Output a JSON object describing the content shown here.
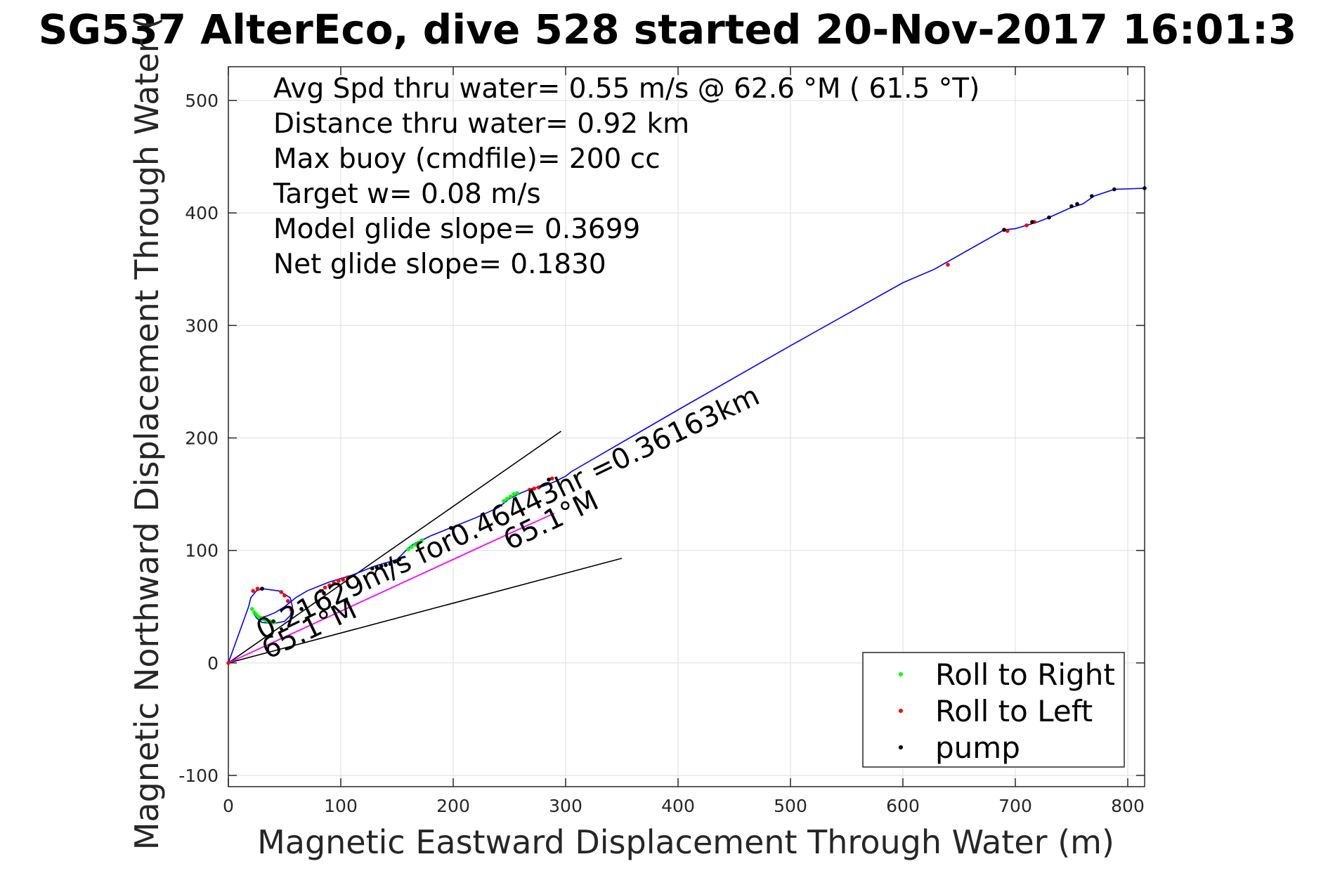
{
  "title": "SG537 AlterEco, dive 528 started 20-Nov-2017 16:01:3",
  "chart_data": {
    "type": "line",
    "title": "SG537 AlterEco, dive 528 started 20-Nov-2017 16:01:3",
    "xlabel": "Magnetic Eastward Displacement Through Water (m)",
    "ylabel": "Magnetic Northward Displacement Through Water (",
    "xlim": [
      0,
      815
    ],
    "ylim": [
      -110,
      530
    ],
    "xticks": [
      0,
      100,
      200,
      300,
      400,
      500,
      600,
      700,
      800
    ],
    "yticks": [
      -100,
      0,
      100,
      200,
      300,
      400,
      500
    ],
    "grid": true,
    "stats_text": [
      "Avg Spd thru water=  0.55 m/s @  62.6 °M ( 61.5 °T)",
      "Distance thru water=  0.92 km",
      "Max buoy (cmdfile)= 200 cc",
      "Target w= 0.08 m/s",
      "Model glide slope= 0.3699",
      "Net glide slope= 0.1830"
    ],
    "annotations": [
      {
        "text": "0.21629m/s for0.46443hr =0.36163km",
        "x": 30,
        "y": 20,
        "angle_deg": -25.5
      },
      {
        "text": "65.1°M",
        "x": 35,
        "y": 3,
        "angle_deg": -25.5
      },
      {
        "text": "65.1°M",
        "x": 250,
        "y": 100,
        "angle_deg": -25.5
      }
    ],
    "track": {
      "name": "track",
      "color": "#0000ff",
      "x": [
        0,
        18,
        20,
        25,
        30,
        45,
        55,
        57,
        55,
        50,
        40,
        30,
        25,
        22,
        28,
        35,
        42,
        50,
        60,
        70,
        80,
        90,
        100,
        110,
        115,
        120,
        130,
        140,
        150,
        153,
        160,
        165,
        170,
        180,
        200,
        220,
        240,
        250,
        260,
        270,
        280,
        290,
        300,
        305,
        400,
        500,
        600,
        628,
        690,
        700,
        710,
        720,
        730,
        750,
        760,
        770,
        788,
        815
      ],
      "y": [
        0,
        50,
        58,
        64,
        66,
        64,
        58,
        50,
        42,
        37,
        35,
        36,
        40,
        45,
        40,
        42,
        45,
        50,
        58,
        64,
        68,
        72,
        75,
        78,
        80,
        82,
        86,
        89,
        92,
        95,
        102,
        106,
        108,
        113,
        121,
        129,
        138,
        146,
        151,
        155,
        157,
        161,
        166,
        170,
        225,
        282,
        338,
        350,
        385,
        386,
        389,
        392,
        396,
        405,
        408,
        415,
        421,
        422
      ]
    },
    "model_line": {
      "name": "model",
      "color": "#ff00ff",
      "x": [
        0,
        50,
        100,
        150,
        200,
        250,
        290
      ],
      "y": [
        0,
        23,
        46,
        69,
        92,
        115,
        133
      ]
    },
    "bound_lines": [
      {
        "x": [
          0,
          296
        ],
        "y": [
          0,
          206
        ]
      },
      {
        "x": [
          0,
          350
        ],
        "y": [
          0,
          93
        ]
      }
    ],
    "roll_right": {
      "name": "Roll to Right",
      "color": "#00ff00",
      "x": [
        21,
        23,
        25,
        27,
        29,
        31,
        33,
        35,
        37,
        39,
        41,
        160,
        163,
        166,
        169,
        172,
        245,
        248,
        251,
        254,
        257
      ],
      "y": [
        48,
        45,
        43,
        41,
        40,
        39,
        38,
        37,
        37,
        36,
        36,
        101,
        103,
        105,
        107,
        109,
        144,
        146,
        148,
        150,
        151
      ]
    },
    "roll_left": {
      "name": "Roll to Left",
      "color": "#ff0000",
      "x": [
        0,
        22,
        26,
        30,
        47,
        50,
        53,
        56,
        82,
        86,
        90,
        94,
        98,
        102,
        106,
        268,
        272,
        276,
        288,
        640,
        693,
        710,
        717
      ],
      "y": [
        0,
        64,
        66,
        66,
        63,
        60,
        55,
        47,
        64,
        67,
        69,
        71,
        73,
        74,
        76,
        154,
        155,
        156,
        164,
        354,
        384,
        389,
        392
      ]
    },
    "pump": {
      "name": "pump",
      "color": "#000000",
      "x": [
        30,
        40,
        65,
        85,
        128,
        132,
        136,
        140,
        144,
        148,
        152,
        198,
        285,
        690,
        715,
        730,
        750,
        755,
        768,
        788,
        815
      ],
      "y": [
        66,
        37,
        48,
        62,
        84,
        85,
        86,
        87,
        88,
        90,
        92,
        120,
        163,
        385,
        392,
        396,
        406,
        408,
        415,
        421,
        422
      ]
    },
    "legend": {
      "placement": "bottom-right",
      "entries": [
        "Roll to Right",
        "Roll to Left",
        "pump"
      ]
    }
  }
}
